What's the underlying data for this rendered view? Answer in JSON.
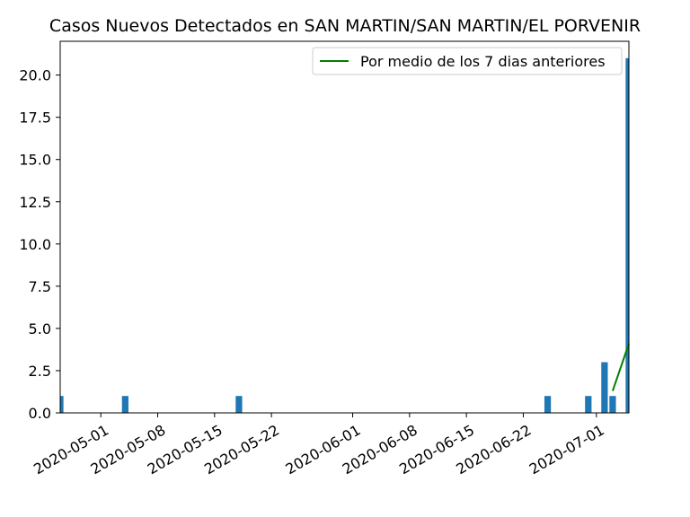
{
  "chart_data": {
    "type": "bar",
    "title": "Casos Nuevos Detectados en SAN MARTIN/SAN MARTIN/EL PORVENIR",
    "xlabel": "",
    "ylabel": "",
    "x_range": [
      "2020-04-26",
      "2020-07-05"
    ],
    "ylim": [
      0,
      22
    ],
    "grid": false,
    "legend_position": "top-right",
    "x_ticks": [
      "2020-05-01",
      "2020-05-08",
      "2020-05-15",
      "2020-05-22",
      "2020-06-01",
      "2020-06-08",
      "2020-06-15",
      "2020-06-22",
      "2020-07-01"
    ],
    "y_ticks": [
      "0.0",
      "2.5",
      "5.0",
      "7.5",
      "10.0",
      "12.5",
      "15.0",
      "17.5",
      "20.0"
    ],
    "y_tick_values": [
      0,
      2.5,
      5,
      7.5,
      10,
      12.5,
      15,
      17.5,
      20
    ],
    "bars": [
      {
        "date": "2020-04-26",
        "value": 1
      },
      {
        "date": "2020-05-04",
        "value": 1
      },
      {
        "date": "2020-05-18",
        "value": 1
      },
      {
        "date": "2020-06-25",
        "value": 1
      },
      {
        "date": "2020-06-30",
        "value": 1
      },
      {
        "date": "2020-07-02",
        "value": 3
      },
      {
        "date": "2020-07-03",
        "value": 1
      },
      {
        "date": "2020-07-05",
        "value": 21
      }
    ],
    "moving_average": {
      "name": "Por medio de los 7 dias anteriores",
      "points": [
        {
          "date": "2020-07-03",
          "value": 1.3
        },
        {
          "date": "2020-07-05",
          "value": 4.1
        }
      ]
    },
    "colors": {
      "bar": "#1f77b4",
      "line": "#008000"
    }
  }
}
